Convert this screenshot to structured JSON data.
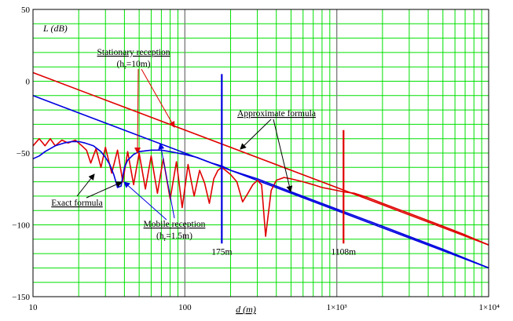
{
  "chart_data": {
    "type": "line",
    "xscale": "log",
    "xlim": [
      10,
      10000
    ],
    "ylim": [
      -150,
      50
    ],
    "grid": true,
    "xlabel": "d (m)",
    "ylabel": "L (dB)",
    "x_ticks": [
      {
        "value": 10,
        "label": "10"
      },
      {
        "value": 100,
        "label": "100"
      },
      {
        "value": 1000,
        "label": "1×10³"
      },
      {
        "value": 10000,
        "label": "1×10⁴"
      }
    ],
    "y_ticks": [
      {
        "value": 50,
        "label": "50"
      },
      {
        "value": 0,
        "label": "0"
      },
      {
        "value": -50,
        "label": "−50"
      },
      {
        "value": -100,
        "label": "−100"
      },
      {
        "value": -150,
        "label": "−150"
      }
    ],
    "colors": {
      "red": "#e00000",
      "blue": "#0000e0",
      "grid": "#00e000",
      "major_grid": "#808080"
    },
    "series": [
      {
        "key": "approx_stationary",
        "color": "#e00000",
        "x": [
          10,
          10000
        ],
        "y": [
          6,
          -114
        ]
      },
      {
        "key": "approx_mobile",
        "color": "#0000e0",
        "x": [
          10,
          10000
        ],
        "y": [
          -10,
          -130
        ]
      },
      {
        "key": "exact_stationary",
        "color": "#e00000",
        "x": [
          10,
          11,
          12,
          13,
          14,
          15.5,
          17,
          19,
          21,
          22.5,
          24,
          26,
          28,
          30,
          33,
          36,
          39,
          42,
          46,
          50,
          55,
          60,
          66,
          72,
          80,
          88,
          96,
          105,
          115,
          125,
          135,
          145,
          155,
          165,
          175,
          185,
          200,
          220,
          240,
          260,
          280,
          300,
          320,
          340,
          370,
          400,
          450,
          500,
          600,
          700,
          800,
          900,
          1000,
          1108,
          1300,
          1600,
          2000,
          3000,
          5000,
          7000,
          10000
        ],
        "y": [
          -45,
          -40,
          -45,
          -40,
          -45,
          -41,
          -43,
          -41,
          -45,
          -48,
          -57,
          -47,
          -60,
          -46,
          -64,
          -48,
          -70,
          -49,
          -72,
          -50,
          -75,
          -52,
          -78,
          -54,
          -82,
          -56,
          -88,
          -58,
          -80,
          -62,
          -71,
          -85,
          -68,
          -62,
          -60,
          -62,
          -65,
          -70,
          -84,
          -78,
          -72,
          -69,
          -72,
          -108,
          -76,
          -69,
          -67,
          -68,
          -70,
          -72,
          -74,
          -75,
          -76,
          -77,
          -78,
          -81,
          -85,
          -92,
          -101,
          -107,
          -114
        ]
      },
      {
        "key": "exact_mobile",
        "color": "#0000e0",
        "x": [
          10,
          11,
          12,
          14,
          16,
          18,
          20,
          22,
          25,
          28,
          30,
          32,
          34,
          36,
          38,
          40,
          42,
          46,
          50,
          60,
          70,
          80,
          100,
          120,
          150,
          175,
          200,
          300,
          500,
          1000,
          2000,
          5000,
          10000
        ],
        "y": [
          -54,
          -52,
          -49,
          -45,
          -43,
          -42,
          -42,
          -43,
          -45,
          -49,
          -53,
          -58,
          -65,
          -74,
          -73,
          -60,
          -55,
          -51,
          -49,
          -48,
          -48,
          -49,
          -51,
          -53,
          -57,
          -59,
          -62,
          -68,
          -77,
          -89,
          -101,
          -117,
          -130
        ]
      }
    ],
    "markers": [
      {
        "x": 175,
        "label": "175m",
        "color": "#0000e0",
        "y_from": 5,
        "y_to": -113
      },
      {
        "x": 1108,
        "label": "1108m",
        "color": "#e00000",
        "y_from": -34,
        "y_to": -113
      }
    ],
    "annotations": {
      "stationary": {
        "line1": "Stationary reception",
        "line2_pre": "(h",
        "line2_sub": "r",
        "line2_post": "=10m)"
      },
      "mobile": {
        "line1": "Mobile reception",
        "line2_pre": "(h",
        "line2_sub": "r",
        "line2_post": "=1.5m)"
      },
      "approximate": "Approximate formula",
      "exact": "Exact formula"
    }
  }
}
